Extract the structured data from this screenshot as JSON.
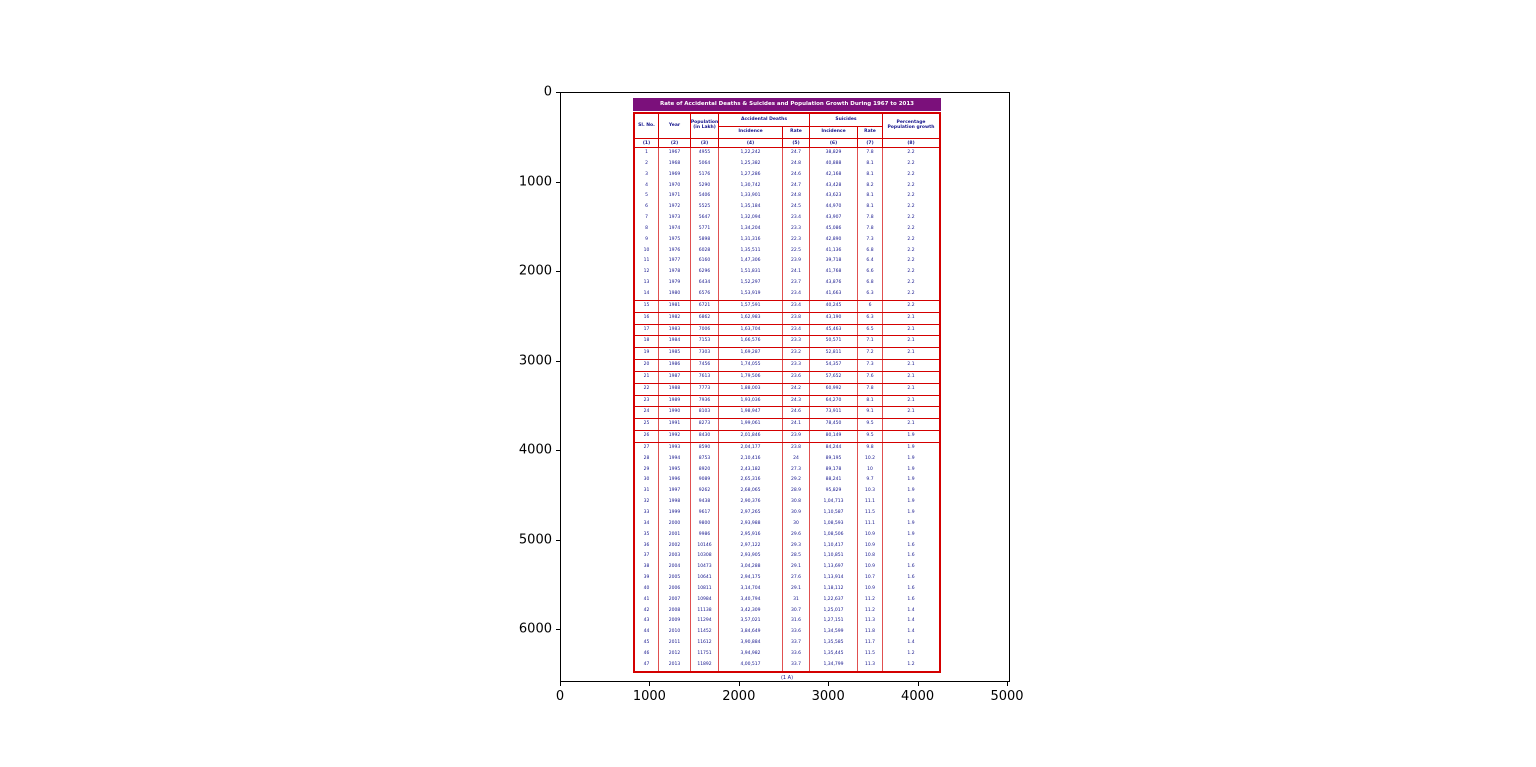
{
  "figure": {
    "x_tick_labels": [
      "0",
      "1000",
      "2000",
      "3000",
      "4000",
      "5000"
    ],
    "y_tick_labels": [
      "0",
      "1000",
      "2000",
      "3000",
      "4000",
      "5000",
      "6000"
    ]
  },
  "colors": {
    "title_bg": "#7B107B",
    "table_border": "#D40000",
    "table_text": "#14148C"
  },
  "chart_data": {
    "type": "table",
    "title": "Rate of Accidental Deaths & Suicides and Population Growth During 1967 to 2013",
    "footer": "(1 A)",
    "header": {
      "sl_no": "Sl. No.",
      "year": "Year",
      "population": "Population (in Lakh)",
      "accidental_deaths": "Accidental Deaths",
      "suicides": "Suicides",
      "incidence": "Incidence",
      "rate": "Rate",
      "pct_growth": "Percentage Population growth"
    },
    "column_numbers": [
      "(1)",
      "(2)",
      "(3)",
      "(4)",
      "(5)",
      "(6)",
      "(7)",
      "(8)"
    ],
    "rows": [
      [
        1,
        1967,
        4955,
        "1,22,242",
        24.7,
        "38,829",
        7.8,
        2.2
      ],
      [
        2,
        1968,
        5064,
        "1,25,382",
        24.8,
        "40,888",
        8.1,
        2.2
      ],
      [
        3,
        1969,
        5176,
        "1,27,286",
        24.6,
        "42,168",
        8.1,
        2.2
      ],
      [
        4,
        1970,
        5290,
        "1,30,742",
        24.7,
        "43,428",
        8.2,
        2.2
      ],
      [
        5,
        1971,
        5406,
        "1,33,901",
        24.8,
        "43,623",
        8.1,
        2.2
      ],
      [
        6,
        1972,
        5525,
        "1,35,184",
        24.5,
        "44,970",
        8.1,
        2.2
      ],
      [
        7,
        1973,
        5647,
        "1,32,094",
        23.4,
        "43,907",
        7.8,
        2.2
      ],
      [
        8,
        1974,
        5771,
        "1,34,204",
        23.3,
        "45,086",
        7.8,
        2.2
      ],
      [
        9,
        1975,
        5898,
        "1,31,316",
        22.3,
        "42,890",
        7.3,
        2.2
      ],
      [
        10,
        1976,
        6028,
        "1,35,511",
        22.5,
        "41,136",
        6.8,
        2.2
      ],
      [
        11,
        1977,
        6160,
        "1,47,306",
        23.9,
        "39,718",
        6.4,
        2.2
      ],
      [
        12,
        1978,
        6296,
        "1,51,831",
        24.1,
        "41,768",
        6.6,
        2.2
      ],
      [
        13,
        1979,
        6434,
        "1,52,297",
        23.7,
        "43,876",
        6.8,
        2.2
      ],
      [
        14,
        1980,
        6576,
        "1,53,919",
        23.4,
        "41,663",
        6.3,
        2.2
      ],
      [
        15,
        1981,
        6721,
        "1,57,591",
        23.4,
        "40,245",
        6.0,
        2.2
      ],
      [
        16,
        1982,
        6862,
        "1,62,983",
        23.8,
        "43,190",
        6.3,
        2.1
      ],
      [
        17,
        1983,
        7006,
        "1,63,704",
        23.4,
        "45,463",
        6.5,
        2.1
      ],
      [
        18,
        1984,
        7153,
        "1,66,576",
        23.3,
        "50,571",
        7.1,
        2.1
      ],
      [
        19,
        1985,
        7303,
        "1,69,287",
        23.2,
        "52,811",
        7.2,
        2.1
      ],
      [
        20,
        1986,
        7456,
        "1,74,055",
        23.3,
        "54,357",
        7.3,
        2.1
      ],
      [
        21,
        1987,
        7613,
        "1,79,506",
        23.6,
        "57,652",
        7.6,
        2.1
      ],
      [
        22,
        1988,
        7773,
        "1,88,003",
        24.2,
        "60,992",
        7.8,
        2.1
      ],
      [
        23,
        1989,
        7936,
        "1,93,036",
        24.3,
        "64,270",
        8.1,
        2.1
      ],
      [
        24,
        1990,
        8103,
        "1,98,947",
        24.6,
        "73,911",
        9.1,
        2.1
      ],
      [
        25,
        1991,
        8273,
        "1,99,061",
        24.1,
        "78,450",
        9.5,
        2.1
      ],
      [
        26,
        1992,
        8430,
        "2,01,846",
        23.9,
        "80,149",
        9.5,
        1.9
      ],
      [
        27,
        1993,
        8590,
        "2,04,177",
        23.8,
        "84,244",
        9.8,
        1.9
      ],
      [
        28,
        1994,
        8753,
        "2,10,416",
        24.0,
        "89,195",
        10.2,
        1.9
      ],
      [
        29,
        1995,
        8920,
        "2,43,182",
        27.3,
        "89,178",
        10.0,
        1.9
      ],
      [
        30,
        1996,
        9089,
        "2,65,316",
        29.2,
        "88,241",
        9.7,
        1.9
      ],
      [
        31,
        1997,
        9262,
        "2,68,065",
        28.9,
        "95,829",
        10.3,
        1.9
      ],
      [
        32,
        1998,
        9438,
        "2,90,376",
        30.8,
        "1,04,713",
        11.1,
        1.9
      ],
      [
        33,
        1999,
        9617,
        "2,97,265",
        30.9,
        "1,10,587",
        11.5,
        1.9
      ],
      [
        34,
        2000,
        9800,
        "2,93,988",
        30.0,
        "1,08,593",
        11.1,
        1.9
      ],
      [
        35,
        2001,
        9986,
        "2,95,916",
        29.6,
        "1,08,506",
        10.9,
        1.9
      ],
      [
        36,
        2002,
        10146,
        "2,97,122",
        29.3,
        "1,10,417",
        10.9,
        1.6
      ],
      [
        37,
        2003,
        10308,
        "2,93,905",
        28.5,
        "1,10,851",
        10.8,
        1.6
      ],
      [
        38,
        2004,
        10473,
        "3,04,288",
        29.1,
        "1,13,697",
        10.9,
        1.6
      ],
      [
        39,
        2005,
        10641,
        "2,94,175",
        27.6,
        "1,13,914",
        10.7,
        1.6
      ],
      [
        40,
        2006,
        10811,
        "3,14,704",
        29.1,
        "1,18,112",
        10.9,
        1.6
      ],
      [
        41,
        2007,
        10984,
        "3,40,794",
        31.0,
        "1,22,637",
        11.2,
        1.6
      ],
      [
        42,
        2008,
        11138,
        "3,42,309",
        30.7,
        "1,25,017",
        11.2,
        1.4
      ],
      [
        43,
        2009,
        11294,
        "3,57,021",
        31.6,
        "1,27,151",
        11.3,
        1.4
      ],
      [
        44,
        2010,
        11452,
        "3,84,649",
        33.6,
        "1,34,599",
        11.8,
        1.4
      ],
      [
        45,
        2011,
        11612,
        "3,90,884",
        33.7,
        "1,35,585",
        11.7,
        1.4
      ],
      [
        46,
        2012,
        11751,
        "3,94,982",
        33.6,
        "1,35,445",
        11.5,
        1.2
      ],
      [
        47,
        2013,
        11892,
        "4,00,517",
        33.7,
        "1,34,799",
        11.3,
        1.2
      ]
    ]
  }
}
